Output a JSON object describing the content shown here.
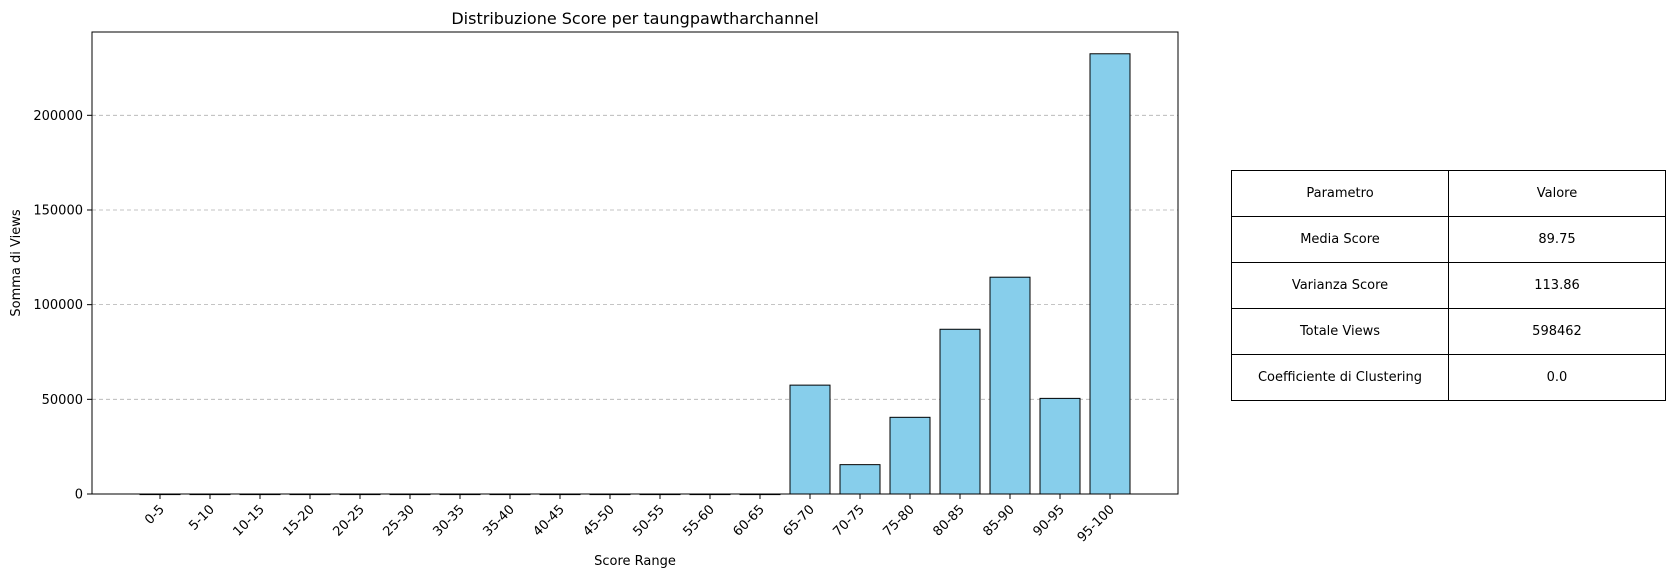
{
  "chart_data": {
    "type": "bar",
    "title": "Distribuzione Score per taungpawtharchannel",
    "xlabel": "Score Range",
    "ylabel": "Somma di Views",
    "categories": [
      "0-5",
      "5-10",
      "10-15",
      "15-20",
      "20-25",
      "25-30",
      "30-35",
      "35-40",
      "40-45",
      "45-50",
      "50-55",
      "55-60",
      "60-65",
      "65-70",
      "70-75",
      "75-80",
      "80-85",
      "85-90",
      "90-95",
      "95-100"
    ],
    "values": [
      0,
      0,
      0,
      0,
      0,
      0,
      0,
      0,
      0,
      0,
      0,
      0,
      0,
      57500,
      15500,
      40500,
      87000,
      114500,
      50500,
      232500
    ],
    "ylim": [
      0,
      244000
    ],
    "yticks": [
      0,
      50000,
      100000,
      150000,
      200000
    ],
    "grid": "y-dashed",
    "bar_color": "#87ceeb",
    "bar_edge_color": "#000000"
  },
  "table": {
    "header": [
      "Parametro",
      "Valore"
    ],
    "rows": [
      [
        "Media Score",
        "89.75"
      ],
      [
        "Varianza Score",
        "113.86"
      ],
      [
        "Totale Views",
        "598462"
      ],
      [
        "Coefficiente di Clustering",
        "0.0"
      ]
    ]
  }
}
